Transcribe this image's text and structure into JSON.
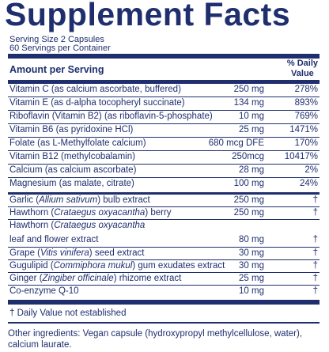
{
  "title": "Supplement Facts",
  "serving_size": "Serving Size 2 Capsules",
  "servings_per_container": "60 Servings per Container",
  "header": {
    "amount_label": "Amount per Serving",
    "dv_label_1": "% Daily",
    "dv_label_2": "Value"
  },
  "rows": [
    {
      "name": "Vitamin C (as calcium ascorbate, buffered)",
      "amount": "250 mg",
      "dv": "278%"
    },
    {
      "name": "Vitamin E (as d-alpha tocopheryl succinate)",
      "amount": "134 mg",
      "dv": "893%"
    },
    {
      "name": "Riboflavin (Vitamin B2) (as riboflavin-5-phosphate)",
      "amount": "10 mg",
      "dv": "769%"
    },
    {
      "name": "Vitamin B6 (as pyridoxine HCl)",
      "amount": "25 mg",
      "dv": "1471%"
    },
    {
      "name": "Folate (as L-Methylfolate calcium)",
      "amount": "680 mcg DFE",
      "dv": "170%"
    },
    {
      "name": "Vitamin B12 (methylcobalamin)",
      "amount": "250mcg",
      "dv": "10417%"
    },
    {
      "name": "Calcium (as calcium ascorbate)",
      "amount": "28 mg",
      "dv": "2%"
    },
    {
      "name": "Magnesium (as malate, citrate)",
      "amount": "100 mg",
      "dv": "24%"
    }
  ],
  "herbal": {
    "garlic": {
      "pre": "Garlic (",
      "latin": "Allium sativum",
      "post": ") bulb extract",
      "amount": "250 mg",
      "dv": "†"
    },
    "hawthorn1": {
      "pre": "Hawthorn (",
      "latin": "Crataegus oxyacantha",
      "post": ") berry",
      "amount": "250 mg",
      "dv": "†"
    },
    "hawthorn2a": {
      "pre": "Hawthorn (",
      "latin": "Crataegus oxyacantha",
      "post": ""
    },
    "hawthorn2b": {
      "text": "leaf and flower extract",
      "amount": "80 mg",
      "dv": "†"
    },
    "grape": {
      "pre": "Grape (",
      "latin": "Vitis vinifera",
      "post": ") seed extract",
      "amount": "30 mg",
      "dv": "†"
    },
    "gugulipid": {
      "pre": "Gugulipid (",
      "latin": "Commiphora mukul",
      "post": ") gum exudates extract",
      "amount": "30 mg",
      "dv": "†"
    },
    "ginger": {
      "pre": "Ginger (",
      "latin": "Zingiber officinale",
      "post": ") rhizome extract",
      "amount": "25 mg",
      "dv": "†"
    },
    "coq10": {
      "text": "Co-enzyme Q-10",
      "amount": "10 mg",
      "dv": "†"
    }
  },
  "footnote": "†  Daily Value not established",
  "other_ingredients": "Other ingredients: Vegan capsule (hydroxypropyl methylcellulose, water), calcium laurate.",
  "colors": {
    "ink": "#1f2f6e"
  }
}
